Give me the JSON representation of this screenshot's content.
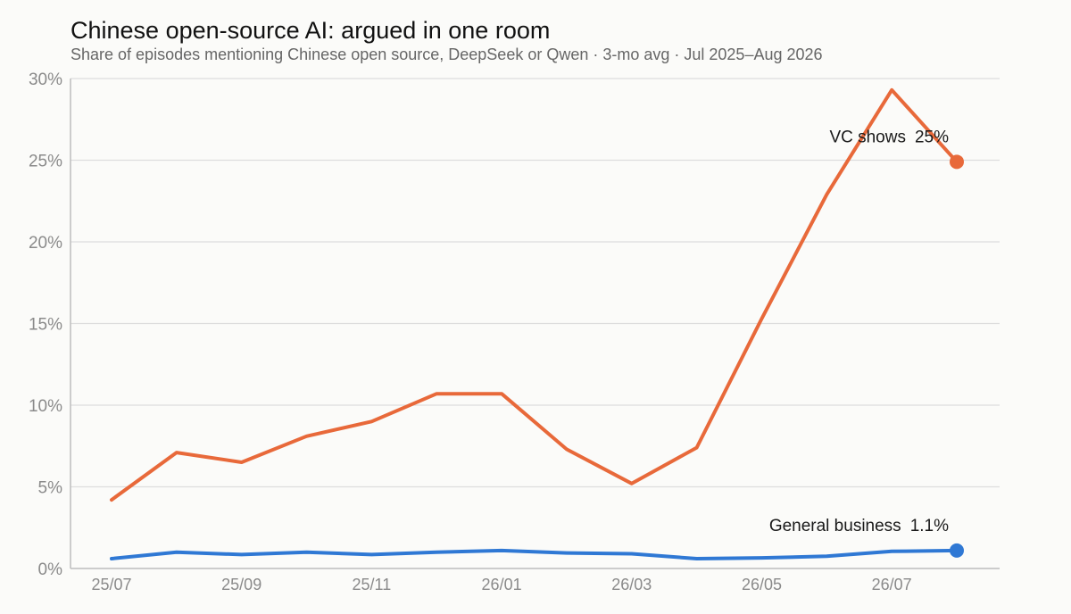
{
  "chart_data": {
    "type": "line",
    "title": "Chinese open-source AI: argued in one room",
    "subtitle": "Share of episodes mentioning Chinese open source, DeepSeek or Qwen · 3-mo avg · Jul 2025–Aug 2026",
    "x": [
      "25/07",
      "25/08",
      "25/09",
      "25/10",
      "25/11",
      "25/12",
      "26/01",
      "26/02",
      "26/03",
      "26/04",
      "26/05",
      "26/06",
      "26/07",
      "26/08"
    ],
    "x_tick_labels": [
      "25/07",
      "25/09",
      "25/11",
      "26/01",
      "26/03",
      "26/05",
      "26/07"
    ],
    "x_tick_indices": [
      0,
      2,
      4,
      6,
      8,
      10,
      12
    ],
    "y_tick_values": [
      0,
      5,
      10,
      15,
      20,
      25,
      30
    ],
    "y_tick_labels": [
      "0%",
      "5%",
      "10%",
      "15%",
      "20%",
      "25%",
      "30%"
    ],
    "ylim": [
      0,
      30
    ],
    "grid": true,
    "series": [
      {
        "color": "#e8693a",
        "values": [
          4.2,
          7.1,
          6.5,
          8.1,
          9.0,
          10.7,
          10.7,
          7.3,
          5.2,
          7.4,
          15.3,
          22.9,
          29.3,
          24.9
        ],
        "end_label": "VC shows",
        "end_value_label": "25%"
      },
      {
        "color": "#2f78d4",
        "values": [
          0.6,
          1.0,
          0.85,
          1.0,
          0.85,
          1.0,
          1.1,
          0.95,
          0.9,
          0.6,
          0.65,
          0.75,
          1.05,
          1.1
        ],
        "end_label": "General business",
        "end_value_label": "1.1%"
      }
    ]
  }
}
